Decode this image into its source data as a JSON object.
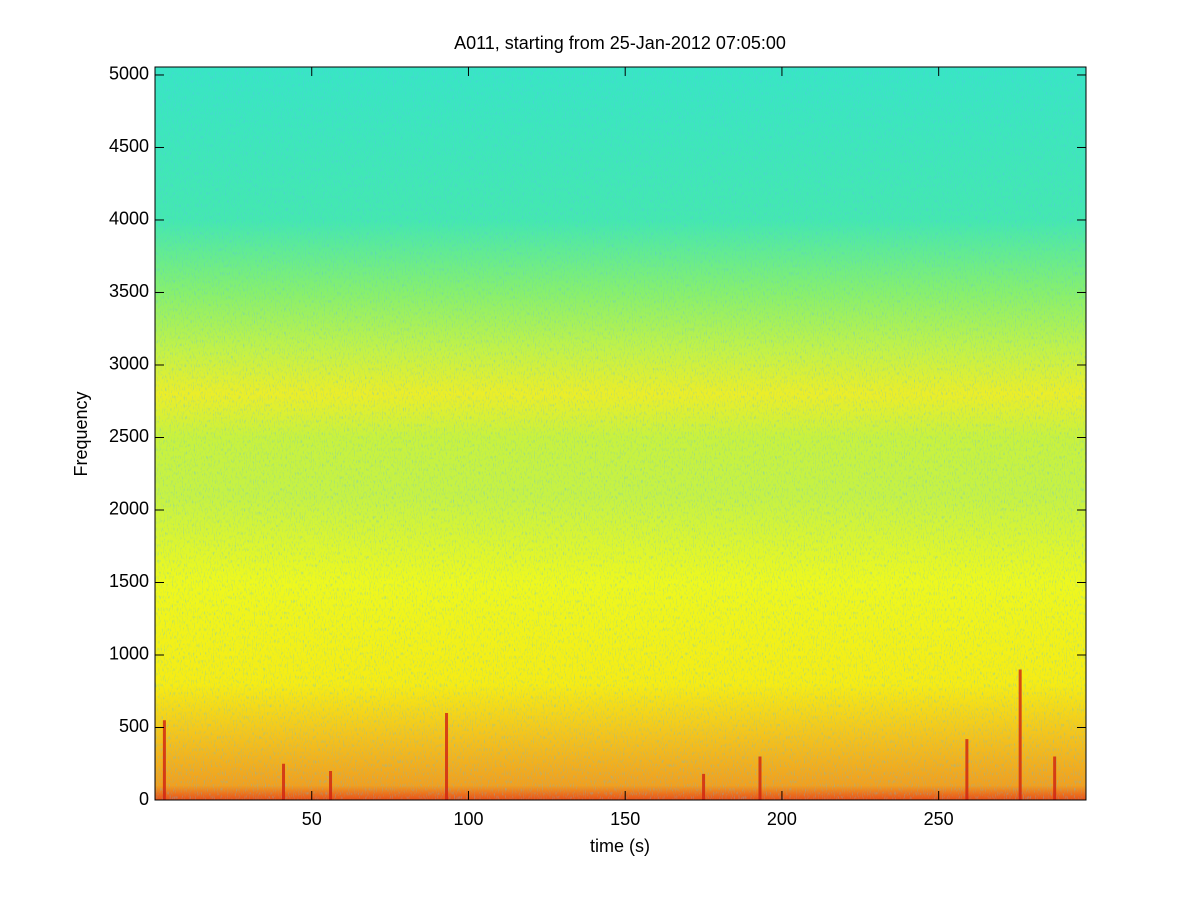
{
  "chart_data": {
    "type": "spectrogram",
    "title": "A011, starting from 25-Jan-2012 07:05:00",
    "xlabel": "time (s)",
    "ylabel": "Frequency",
    "xlim": [
      0,
      297
    ],
    "xticks": [
      50,
      100,
      150,
      200,
      250
    ],
    "ylim": [
      0,
      5055
    ],
    "yticks": [
      0,
      500,
      1000,
      1500,
      2000,
      2500,
      3000,
      3500,
      4000,
      4500,
      5000
    ],
    "color_stops": [
      {
        "frequency": 0,
        "color": "#e8501a"
      },
      {
        "frequency": 100,
        "color": "#f0a020"
      },
      {
        "frequency": 450,
        "color": "#f4c41c"
      },
      {
        "frequency": 800,
        "color": "#f6ec14"
      },
      {
        "frequency": 1500,
        "color": "#eef81e"
      },
      {
        "frequency": 2100,
        "color": "#c6f244"
      },
      {
        "frequency": 2500,
        "color": "#c8f23e"
      },
      {
        "frequency": 2800,
        "color": "#ecee28"
      },
      {
        "frequency": 3100,
        "color": "#c4f246"
      },
      {
        "frequency": 3500,
        "color": "#88f06c"
      },
      {
        "frequency": 4000,
        "color": "#44e8b0"
      },
      {
        "frequency": 5055,
        "color": "#38e6c4"
      }
    ],
    "spike_color": "#d02010",
    "spikes": [
      {
        "time": 3,
        "height": 550
      },
      {
        "time": 41,
        "height": 250
      },
      {
        "time": 56,
        "height": 200
      },
      {
        "time": 93,
        "height": 600
      },
      {
        "time": 175,
        "height": 180
      },
      {
        "time": 193,
        "height": 300
      },
      {
        "time": 259,
        "height": 420
      },
      {
        "time": 276,
        "height": 900
      },
      {
        "time": 287,
        "height": 300
      }
    ]
  }
}
